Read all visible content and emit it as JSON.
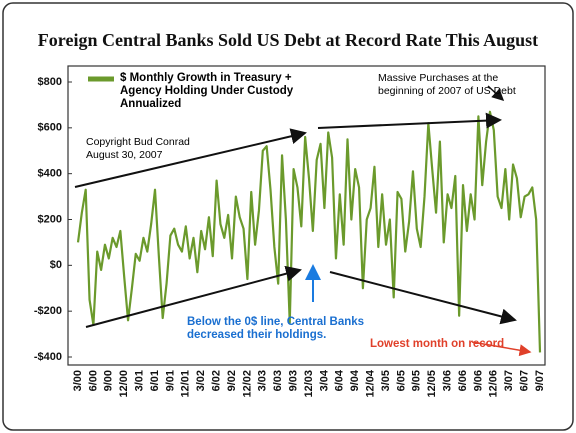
{
  "chart_data": {
    "type": "line",
    "title": "Foreign Central Banks Sold US Debt at Record Rate This August",
    "annotations": [
      "Copyright Bud Conrad",
      "August 30, 2007",
      "Massive Purchases at the beginning of 2007 of US Debt",
      "Below the 0$ line, Central Banks decreased their holdings.",
      "Lowest month on record"
    ],
    "categories": [
      "3/00",
      null,
      null,
      null,
      "6/00",
      null,
      null,
      null,
      "9/00",
      null,
      null,
      null,
      "12/00",
      null,
      null,
      null,
      "3/01",
      null,
      null,
      null,
      "6/01",
      null,
      null,
      null,
      "9/01",
      null,
      null,
      null,
      "12/01",
      null,
      null,
      null,
      "3/02",
      null,
      null,
      null,
      "6/02",
      null,
      null,
      null,
      "9/02",
      null,
      null,
      null,
      "12/02",
      null,
      null,
      null,
      "3/03",
      null,
      null,
      null,
      "6/03",
      null,
      null,
      null,
      "9/03",
      null,
      null,
      null,
      "12/03",
      null,
      null,
      null,
      "3/04",
      null,
      null,
      null,
      "6/04",
      null,
      null,
      null,
      "9/04",
      null,
      null,
      null,
      "12/04",
      null,
      null,
      null,
      "3/05",
      null,
      null,
      null,
      "6/05",
      null,
      null,
      null,
      "9/05",
      null,
      null,
      null,
      "12/05",
      null,
      null,
      null,
      "3/06",
      null,
      null,
      null,
      "6/06",
      null,
      null,
      null,
      "9/06",
      null,
      null,
      null,
      "12/06",
      null,
      null,
      null,
      "3/07",
      null,
      null,
      null,
      "6/07",
      null,
      null,
      null,
      "9/07"
    ],
    "series": [
      {
        "name": "$ Monthly Growth in Treasury + Agency Holding Under Custody Annualized",
        "color": "#6b9a2c",
        "values": [
          100,
          230,
          330,
          -150,
          -260,
          60,
          -20,
          90,
          30,
          120,
          80,
          150,
          -50,
          -240,
          -100,
          50,
          20,
          120,
          60,
          180,
          330,
          40,
          -230,
          -80,
          130,
          160,
          90,
          60,
          170,
          30,
          120,
          -30,
          150,
          70,
          210,
          40,
          370,
          180,
          120,
          220,
          30,
          300,
          210,
          160,
          -60,
          320,
          90,
          240,
          500,
          520,
          330,
          80,
          -80,
          480,
          200,
          -250,
          420,
          340,
          170,
          560,
          380,
          150,
          460,
          530,
          250,
          580,
          470,
          30,
          310,
          90,
          550,
          200,
          420,
          340,
          -100,
          200,
          250,
          430,
          80,
          310,
          90,
          200,
          -140,
          320,
          290,
          60,
          190,
          410,
          160,
          80,
          300,
          620,
          420,
          230,
          540,
          100,
          310,
          250,
          390,
          -220,
          350,
          150,
          310,
          200,
          650,
          350,
          540,
          670,
          590,
          300,
          250,
          420,
          200,
          440,
          380,
          210,
          300,
          310,
          340,
          200,
          -380
        ]
      }
    ],
    "ylim": [
      -400,
      800
    ],
    "yticks": [
      {
        "value": -400,
        "label": "-$400"
      },
      {
        "value": -200,
        "label": "-$200"
      },
      {
        "value": 0,
        "label": "$0"
      },
      {
        "value": 200,
        "label": "$200"
      },
      {
        "value": 400,
        "label": "$400"
      },
      {
        "value": 600,
        "label": "$600"
      },
      {
        "value": 800,
        "label": "$800"
      }
    ],
    "grid": false
  }
}
